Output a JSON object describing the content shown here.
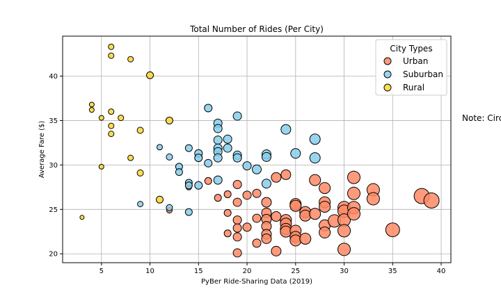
{
  "chart_data": {
    "type": "scatter",
    "title": "Total Number of Rides (Per City)",
    "xlabel": "PyBer Ride-Sharing Data (2019)",
    "ylabel": "Average Fare ($)",
    "xlim": [
      1,
      41
    ],
    "ylim": [
      19,
      44.5
    ],
    "xticks": [
      5,
      10,
      15,
      20,
      25,
      30,
      35,
      40
    ],
    "yticks": [
      20,
      25,
      30,
      35,
      40
    ],
    "grid": true,
    "legend": {
      "title": "City Types",
      "placement": "top-right"
    },
    "note": "Note: Circle size correlates with driver count per city.",
    "series": [
      {
        "name": "Urban",
        "color": "#ff8a65",
        "points": [
          [
            12,
            24.9
          ],
          [
            14,
            27.5
          ],
          [
            16,
            28.2
          ],
          [
            17,
            26.3
          ],
          [
            18,
            24.6
          ],
          [
            18,
            22.3
          ],
          [
            18,
            26.7
          ],
          [
            19,
            27.8
          ],
          [
            19,
            25.8
          ],
          [
            19,
            23.8
          ],
          [
            19,
            22.9
          ],
          [
            19,
            21.9
          ],
          [
            19,
            20.1
          ],
          [
            20,
            26.6
          ],
          [
            20,
            23.0
          ],
          [
            21,
            26.8
          ],
          [
            21,
            24.0
          ],
          [
            21,
            21.2
          ],
          [
            22,
            25.8
          ],
          [
            22,
            24.6
          ],
          [
            22,
            23.9
          ],
          [
            22,
            23.1
          ],
          [
            22,
            22.2
          ],
          [
            22,
            21.7
          ],
          [
            23,
            28.6
          ],
          [
            23,
            24.2
          ],
          [
            23,
            20.3
          ],
          [
            24,
            28.9
          ],
          [
            24,
            23.8
          ],
          [
            24,
            23.4
          ],
          [
            24,
            22.8
          ],
          [
            24,
            22.5
          ],
          [
            25,
            25.6
          ],
          [
            25,
            25.4
          ],
          [
            25,
            22.6
          ],
          [
            25,
            21.9
          ],
          [
            25,
            21.5
          ],
          [
            26,
            24.7
          ],
          [
            26,
            24.3
          ],
          [
            26,
            21.7
          ],
          [
            27,
            28.3
          ],
          [
            27,
            24.5
          ],
          [
            28,
            27.4
          ],
          [
            28,
            25.8
          ],
          [
            28,
            25.3
          ],
          [
            28,
            23.2
          ],
          [
            28,
            22.4
          ],
          [
            29,
            23.7
          ],
          [
            30,
            25.2
          ],
          [
            30,
            24.8
          ],
          [
            30,
            23.8
          ],
          [
            30,
            22.6
          ],
          [
            30,
            20.5
          ],
          [
            31,
            28.6
          ],
          [
            31,
            26.8
          ],
          [
            31,
            25.2
          ],
          [
            31,
            24.5
          ],
          [
            33,
            27.2
          ],
          [
            33,
            26.2
          ],
          [
            35,
            22.7
          ],
          [
            38,
            26.5
          ],
          [
            39,
            26.0
          ]
        ],
        "sizes": [
          8,
          8,
          10,
          10,
          10,
          10,
          10,
          12,
          12,
          12,
          12,
          12,
          12,
          12,
          12,
          12,
          12,
          12,
          14,
          14,
          14,
          14,
          14,
          14,
          14,
          14,
          14,
          14,
          16,
          16,
          16,
          16,
          16,
          16,
          16,
          16,
          16,
          16,
          16,
          16,
          16,
          16,
          16,
          16,
          16,
          16,
          16,
          18,
          18,
          18,
          18,
          18,
          18,
          18,
          18,
          18,
          18,
          18,
          18,
          20,
          22,
          22
        ]
      },
      {
        "name": "Suburban",
        "color": "#87ceeb",
        "points": [
          [
            9,
            25.6
          ],
          [
            11,
            32.0
          ],
          [
            12,
            30.9
          ],
          [
            12,
            25.2
          ],
          [
            13,
            29.8
          ],
          [
            13,
            29.2
          ],
          [
            14,
            31.9
          ],
          [
            14,
            28.0
          ],
          [
            14,
            27.7
          ],
          [
            14,
            24.7
          ],
          [
            15,
            31.3
          ],
          [
            15,
            30.8
          ],
          [
            15,
            27.7
          ],
          [
            16,
            36.4
          ],
          [
            16,
            30.2
          ],
          [
            17,
            34.7
          ],
          [
            17,
            34.1
          ],
          [
            17,
            32.8
          ],
          [
            17,
            31.9
          ],
          [
            17,
            31.5
          ],
          [
            17,
            30.8
          ],
          [
            17,
            28.3
          ],
          [
            18,
            32.9
          ],
          [
            18,
            31.9
          ],
          [
            19,
            35.5
          ],
          [
            19,
            31.1
          ],
          [
            19,
            30.8
          ],
          [
            20,
            29.9
          ],
          [
            21,
            29.5
          ],
          [
            22,
            31.2
          ],
          [
            22,
            30.9
          ],
          [
            22,
            27.9
          ],
          [
            24,
            34.0
          ],
          [
            25,
            31.3
          ],
          [
            27,
            32.9
          ],
          [
            27,
            30.8
          ]
        ],
        "sizes": [
          8,
          8,
          9,
          9,
          10,
          10,
          10,
          10,
          10,
          10,
          11,
          11,
          11,
          11,
          11,
          12,
          12,
          12,
          12,
          12,
          12,
          12,
          12,
          12,
          12,
          12,
          12,
          12,
          13,
          13,
          13,
          13,
          14,
          14,
          15,
          15
        ]
      },
      {
        "name": "Rural",
        "color": "#ffd633",
        "points": [
          [
            3,
            24.1
          ],
          [
            4,
            36.8
          ],
          [
            4,
            36.2
          ],
          [
            5,
            35.3
          ],
          [
            5,
            29.8
          ],
          [
            6,
            43.3
          ],
          [
            6,
            42.3
          ],
          [
            6,
            36.0
          ],
          [
            6,
            34.4
          ],
          [
            6,
            33.5
          ],
          [
            7,
            35.3
          ],
          [
            8,
            41.9
          ],
          [
            8,
            30.8
          ],
          [
            9,
            33.9
          ],
          [
            9,
            29.1
          ],
          [
            10,
            40.1
          ],
          [
            11,
            26.1
          ],
          [
            12,
            35.0
          ]
        ],
        "sizes": [
          6,
          7,
          7,
          7,
          7,
          8,
          8,
          8,
          8,
          8,
          8,
          8,
          8,
          9,
          9,
          10,
          10,
          10
        ]
      }
    ]
  }
}
